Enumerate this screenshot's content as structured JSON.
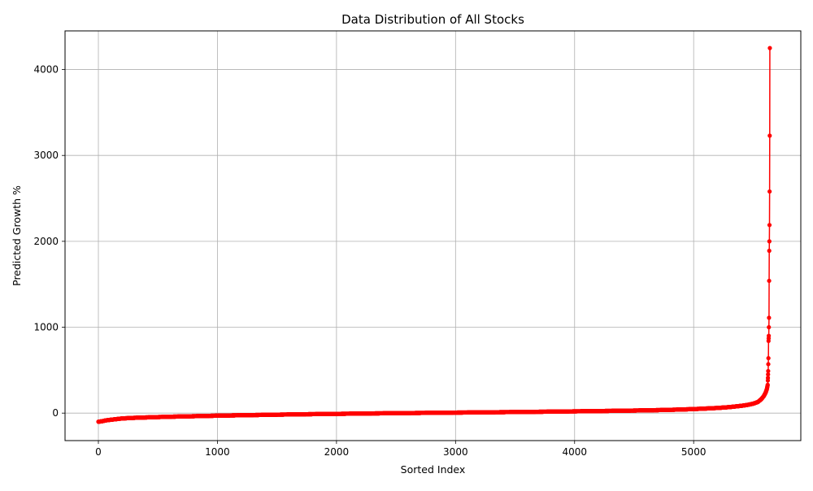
{
  "chart_data": {
    "type": "line",
    "title": "Data Distribution of All Stocks",
    "xlabel": "Sorted Index",
    "ylabel": "Predicted Growth %",
    "xlim": [
      -280,
      5900
    ],
    "ylim": [
      -320,
      4450
    ],
    "grid": true,
    "line_color": "#ff0000",
    "marker": "circle",
    "n_points": 5640,
    "x_ticks": [
      {
        "value": 0,
        "label": "0"
      },
      {
        "value": 1000,
        "label": "1000"
      },
      {
        "value": 2000,
        "label": "2000"
      },
      {
        "value": 3000,
        "label": "3000"
      },
      {
        "value": 4000,
        "label": "4000"
      },
      {
        "value": 5000,
        "label": "5000"
      }
    ],
    "y_ticks": [
      {
        "value": 0,
        "label": "0"
      },
      {
        "value": 1000,
        "label": "1000"
      },
      {
        "value": 2000,
        "label": "2000"
      },
      {
        "value": 3000,
        "label": "3000"
      },
      {
        "value": 4000,
        "label": "4000"
      }
    ],
    "curve": [
      [
        0,
        -100
      ],
      [
        30,
        -95
      ],
      [
        60,
        -85
      ],
      [
        100,
        -78
      ],
      [
        150,
        -70
      ],
      [
        200,
        -62
      ],
      [
        300,
        -55
      ],
      [
        450,
        -48
      ],
      [
        600,
        -42
      ],
      [
        800,
        -36
      ],
      [
        1000,
        -30
      ],
      [
        1200,
        -25
      ],
      [
        1500,
        -18
      ],
      [
        1800,
        -12
      ],
      [
        2100,
        -7
      ],
      [
        2400,
        -2
      ],
      [
        2700,
        2
      ],
      [
        3000,
        6
      ],
      [
        3300,
        10
      ],
      [
        3600,
        14
      ],
      [
        3900,
        19
      ],
      [
        4200,
        24
      ],
      [
        4500,
        30
      ],
      [
        4700,
        35
      ],
      [
        4900,
        42
      ],
      [
        5050,
        50
      ],
      [
        5200,
        60
      ],
      [
        5300,
        70
      ],
      [
        5400,
        85
      ],
      [
        5450,
        95
      ],
      [
        5500,
        110
      ],
      [
        5540,
        130
      ],
      [
        5570,
        165
      ],
      [
        5590,
        200
      ],
      [
        5605,
        240
      ],
      [
        5615,
        280
      ],
      [
        5622,
        330
      ]
    ],
    "outliers": [
      [
        5623,
        380
      ],
      [
        5624,
        410
      ],
      [
        5625,
        450
      ],
      [
        5626,
        490
      ],
      [
        5627,
        570
      ],
      [
        5628,
        640
      ],
      [
        5629,
        840
      ],
      [
        5630,
        870
      ],
      [
        5631,
        900
      ],
      [
        5632,
        1000
      ],
      [
        5633,
        1110
      ],
      [
        5634,
        1540
      ],
      [
        5635,
        1890
      ],
      [
        5636,
        2000
      ],
      [
        5637,
        2190
      ],
      [
        5638,
        2580
      ],
      [
        5639,
        3230
      ],
      [
        5640,
        4250
      ]
    ]
  }
}
